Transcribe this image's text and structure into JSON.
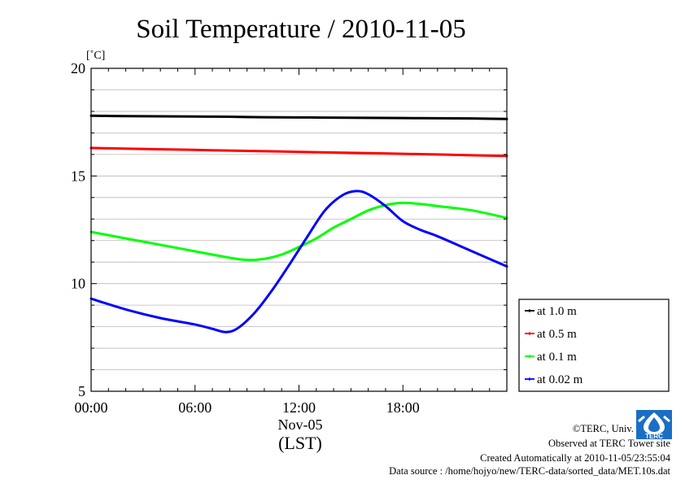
{
  "chart_data": {
    "type": "line",
    "title": "Soil Temperature / 2010-11-05",
    "ylabel": "[˚C]",
    "xlabel": "(LST)",
    "date_label": "Nov-05",
    "ylim": [
      5,
      20
    ],
    "xlim": [
      0,
      24
    ],
    "yticks": [
      5,
      10,
      15,
      20
    ],
    "yticks_labels": [
      "5",
      "10",
      "15",
      "20"
    ],
    "xticks": [
      0,
      6,
      12,
      18
    ],
    "xticks_labels": [
      "00:00",
      "06:00",
      "12:00",
      "18:00"
    ],
    "grid": true,
    "legend_position": "right",
    "series": [
      {
        "name": "at 1.0 m",
        "color": "#000000",
        "x": [
          0,
          2,
          4,
          6,
          8,
          10,
          12,
          14,
          16,
          18,
          20,
          22,
          24
        ],
        "y": [
          17.8,
          17.78,
          17.77,
          17.76,
          17.75,
          17.73,
          17.72,
          17.71,
          17.7,
          17.69,
          17.68,
          17.67,
          17.65
        ]
      },
      {
        "name": "at 0.5 m",
        "color": "#ff0000",
        "x": [
          0,
          2,
          4,
          6,
          8,
          10,
          12,
          14,
          16,
          18,
          20,
          22,
          24
        ],
        "y": [
          16.3,
          16.27,
          16.24,
          16.21,
          16.18,
          16.15,
          16.12,
          16.09,
          16.06,
          16.03,
          16.0,
          15.96,
          15.93
        ]
      },
      {
        "name": "at 0.1 m",
        "color": "#00ff00",
        "x": [
          0,
          2,
          4,
          6,
          8,
          9,
          10,
          11,
          12,
          13,
          14,
          15,
          16,
          17,
          18,
          19,
          20,
          22,
          24
        ],
        "y": [
          12.4,
          12.1,
          11.8,
          11.5,
          11.2,
          11.1,
          11.15,
          11.35,
          11.7,
          12.1,
          12.6,
          13.0,
          13.4,
          13.65,
          13.75,
          13.7,
          13.6,
          13.4,
          13.05
        ]
      },
      {
        "name": "at 0.02 m",
        "color": "#0000ff",
        "x": [
          0,
          2,
          4,
          6,
          7,
          7.8,
          8.5,
          9.5,
          10.5,
          11.5,
          12.5,
          13.5,
          14.5,
          15.3,
          16,
          17,
          18,
          19,
          20,
          22,
          24
        ],
        "y": [
          9.3,
          8.8,
          8.4,
          8.1,
          7.9,
          7.75,
          7.95,
          8.7,
          9.75,
          10.95,
          12.2,
          13.4,
          14.1,
          14.3,
          14.15,
          13.6,
          12.9,
          12.5,
          12.2,
          11.5,
          10.8
        ]
      }
    ]
  },
  "footer": {
    "copyright": "©TERC, Univ. Tsukuba",
    "observed": "Observed at TERC Tower site",
    "created": "Created Automatically at 2010-11-05/23:55:04",
    "source": "Data source : /home/hojyo/new/TERC-data/sorted_data/MET.10s.dat"
  },
  "logo": {
    "text": "TERC",
    "color": "#1a6fc4"
  }
}
